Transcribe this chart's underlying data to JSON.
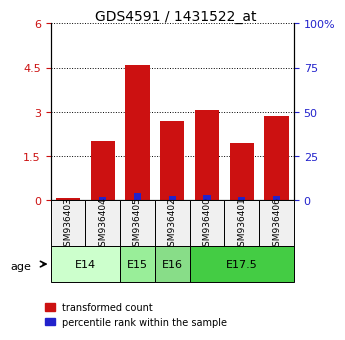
{
  "title": "GDS4591 / 1431522_at",
  "samples": [
    "GSM936403",
    "GSM936404",
    "GSM936405",
    "GSM936402",
    "GSM936400",
    "GSM936401",
    "GSM936406"
  ],
  "transformed_counts": [
    0.08,
    2.0,
    4.6,
    2.7,
    3.05,
    1.95,
    2.85
  ],
  "percentile_ranks": [
    0.06,
    1.7,
    4.3,
    2.55,
    2.95,
    1.7,
    2.6
  ],
  "age_groups": [
    {
      "label": "E14",
      "samples": [
        0,
        1
      ],
      "color": "#ccffcc"
    },
    {
      "label": "E15",
      "samples": [
        2
      ],
      "color": "#99ee99"
    },
    {
      "label": "E16",
      "samples": [
        3
      ],
      "color": "#88dd88"
    },
    {
      "label": "E17.5",
      "samples": [
        4,
        5,
        6
      ],
      "color": "#44cc44"
    }
  ],
  "ylim_left": [
    0,
    6
  ],
  "ylim_right": [
    0,
    100
  ],
  "yticks_left": [
    0,
    1.5,
    3.0,
    4.5,
    6.0
  ],
  "ytick_labels_left": [
    "0",
    "1.5",
    "3",
    "4.5",
    "6"
  ],
  "yticks_right": [
    0,
    25,
    50,
    75,
    100
  ],
  "ytick_labels_right": [
    "0",
    "25",
    "50",
    "75",
    "100%"
  ],
  "bar_color_red": "#cc1111",
  "bar_color_blue": "#2222cc",
  "bg_color": "#f0f0f0",
  "legend_red": "transformed count",
  "legend_blue": "percentile rank within the sample",
  "bar_width": 0.35
}
